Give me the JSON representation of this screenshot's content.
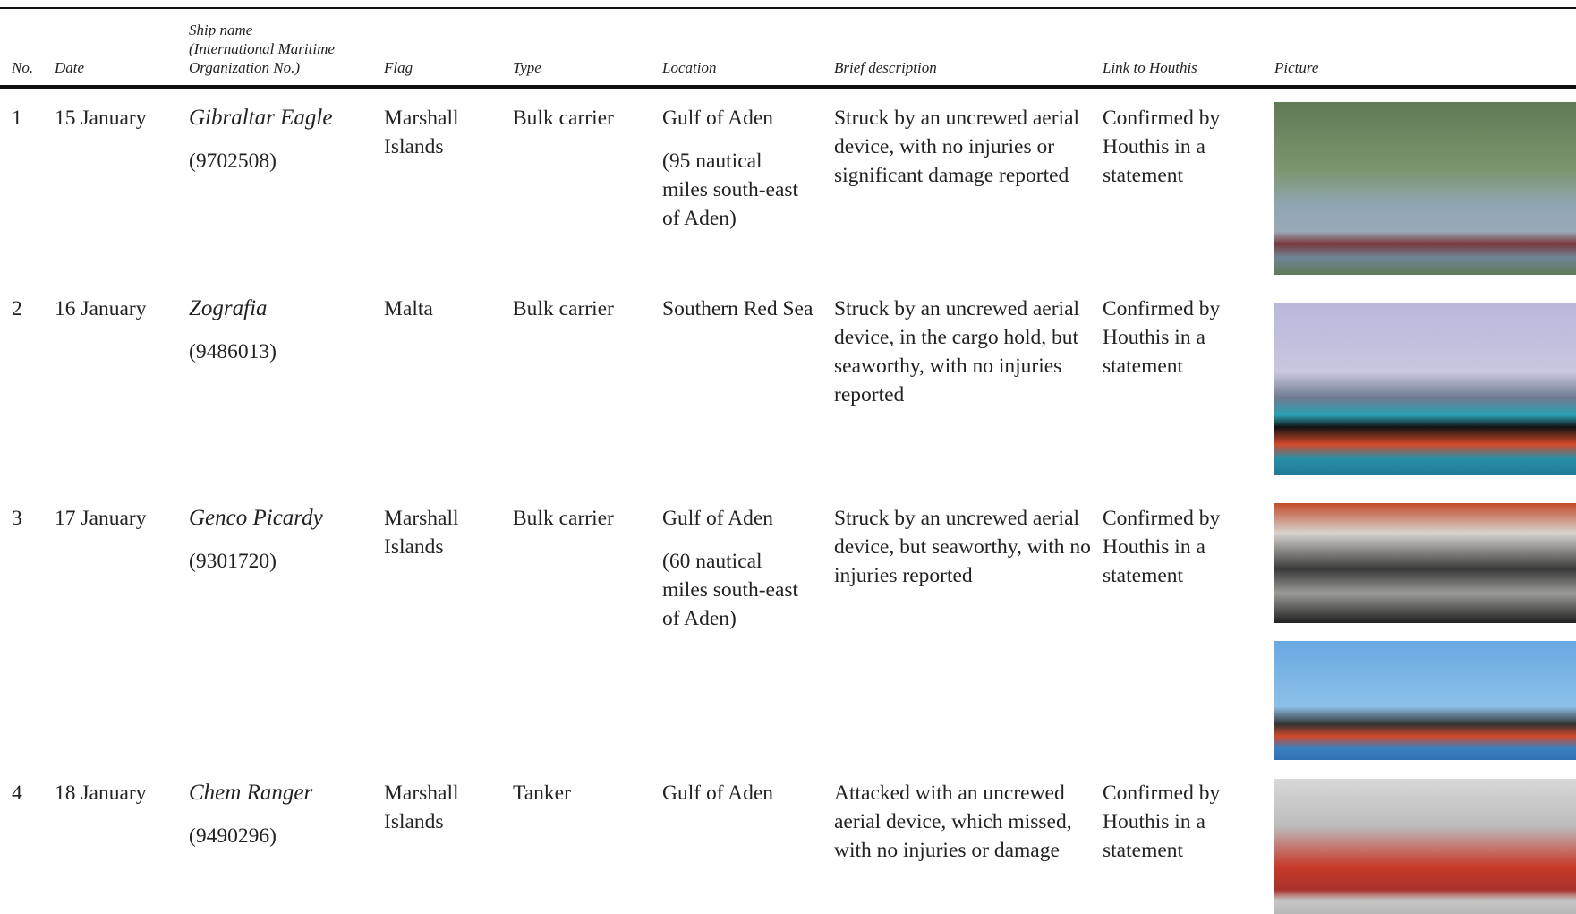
{
  "table": {
    "headers": [
      "No.",
      "Date",
      "Ship name",
      "Flag",
      "Type",
      "Location",
      "Brief description",
      "Link to Houthis",
      "Picture"
    ],
    "ship_name_note": "(International Maritime Organization No.)",
    "rows": [
      {
        "no": 1,
        "date": "15 January",
        "ship": "Gibraltar Eagle",
        "imo": "(9702508)",
        "flag": "Marshall Islands",
        "type": "Bulk carrier",
        "location": "Gulf of Aden",
        "location_detail": "(95 nautical miles south-east of Aden)",
        "description": "Struck by an uncrewed aerial device, with no injuries or significant damage reported",
        "link": "Confirmed by Houthis in a statement"
      },
      {
        "no": 2,
        "date": "16 January",
        "ship": "Zografia",
        "imo": "(9486013)",
        "flag": "Malta",
        "type": "Bulk carrier",
        "location": "Southern Red Sea",
        "description": "Struck by an uncrewed aerial device, in the cargo hold, but seaworthy, with no injuries reported",
        "link": "Confirmed by Houthis in a statement"
      },
      {
        "no": 3,
        "date": "17 January",
        "ship": "Genco Picardy",
        "imo": "(9301720)",
        "flag": "Marshall Islands",
        "type": "Bulk carrier",
        "location": "Gulf of Aden",
        "location_detail": "(60 nautical miles south-east of Aden)",
        "description": "Struck by an uncrewed aerial device, but seaworthy, with no injuries reported",
        "link": "Confirmed by Houthis in a statement"
      },
      {
        "no": 4,
        "date": "18 January",
        "ship": "Chem Ranger",
        "imo": "(9490296)",
        "flag": "Marshall Islands",
        "type": "Tanker",
        "location": "Gulf of Aden",
        "description": "Attacked with an uncrewed aerial device, which missed, with no injuries or damage",
        "link": "Confirmed by Houthis in a statement"
      }
    ]
  }
}
